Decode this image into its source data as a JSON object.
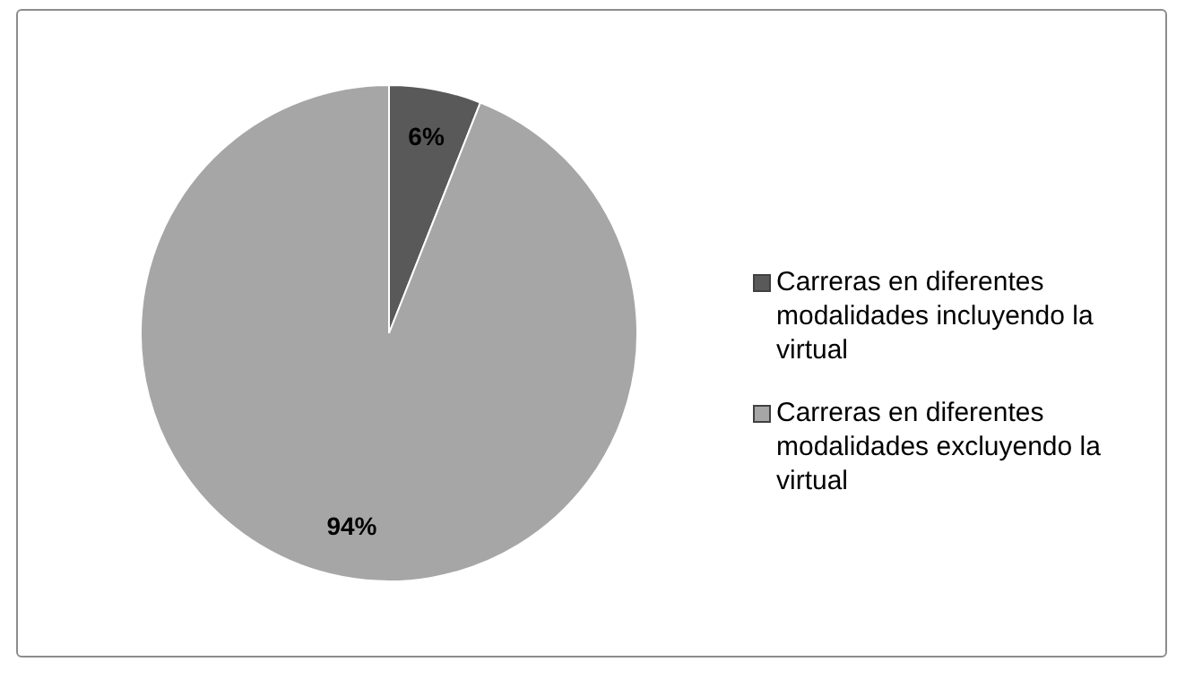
{
  "chart_data": {
    "type": "pie",
    "categories": [
      "Carreras en diferentes modalidades incluyendo la virtual",
      "Carreras en diferentes modalidades excluyendo la virtual"
    ],
    "values": [
      6,
      94
    ],
    "colors": [
      "#595959",
      "#a6a6a6"
    ],
    "value_labels": [
      "6%",
      "94%"
    ],
    "legend": "right"
  }
}
